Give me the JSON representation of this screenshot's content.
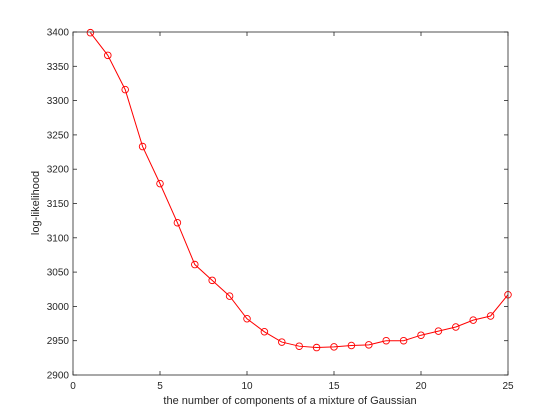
{
  "chart_data": {
    "type": "line",
    "title": "",
    "xlabel": "the number of components of a mixture of Gaussian",
    "ylabel": "log-likelihood",
    "xlim": [
      0,
      25
    ],
    "ylim": [
      2900,
      3400
    ],
    "xticks": [
      0,
      5,
      10,
      15,
      20,
      25
    ],
    "yticks": [
      2900,
      2950,
      3000,
      3050,
      3100,
      3150,
      3200,
      3250,
      3300,
      3350,
      3400
    ],
    "grid": false,
    "legend": "none",
    "series": [
      {
        "color": "#ff0000",
        "marker": "circle",
        "x": [
          1,
          2,
          3,
          4,
          5,
          6,
          7,
          8,
          9,
          10,
          11,
          12,
          13,
          14,
          15,
          16,
          17,
          18,
          19,
          20,
          21,
          22,
          23,
          24,
          25
        ],
        "y": [
          3399,
          3366,
          3316,
          3233,
          3179,
          3122,
          3061,
          3038,
          3015,
          2982,
          2963,
          2948,
          2942,
          2940,
          2941,
          2943,
          2944,
          2950,
          2950,
          2958,
          2964,
          2970,
          2980,
          2986,
          3017
        ]
      }
    ]
  }
}
